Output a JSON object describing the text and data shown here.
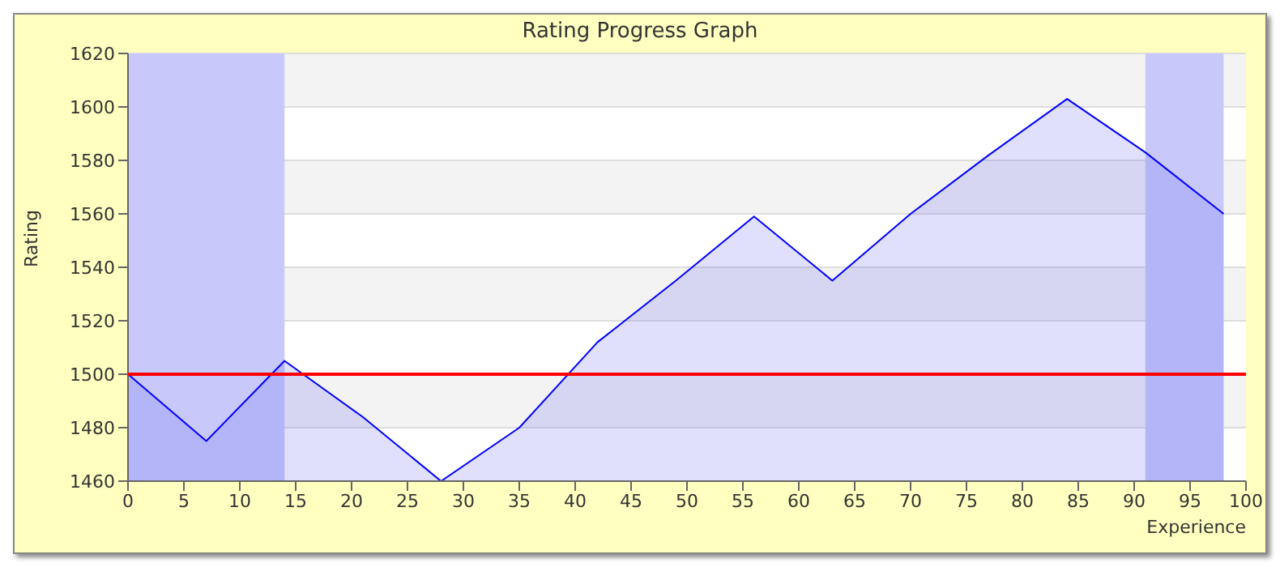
{
  "chart_data": {
    "type": "area",
    "title": "Rating Progress Graph",
    "xlabel": "Experience",
    "ylabel": "Rating",
    "x": [
      0,
      7,
      14,
      21,
      28,
      35,
      42,
      49,
      56,
      63,
      70,
      77,
      84,
      91,
      98
    ],
    "series": [
      {
        "color": "#0000ff",
        "values": [
          1500,
          1475,
          1505,
          1484,
          1460,
          1480,
          1512,
          1535,
          1559,
          1535,
          1560,
          1582,
          1603,
          1583,
          1560
        ]
      }
    ],
    "xlim": [
      0,
      100
    ],
    "xticks": [
      0,
      5,
      10,
      15,
      20,
      25,
      30,
      35,
      40,
      45,
      50,
      55,
      60,
      65,
      70,
      75,
      80,
      85,
      90,
      95,
      100
    ],
    "ylim": [
      1460,
      1620
    ],
    "yticks": [
      1460,
      1480,
      1500,
      1520,
      1540,
      1560,
      1580,
      1600,
      1620
    ],
    "grid": "y",
    "legend": false,
    "marker": "none",
    "ref_lines": [
      {
        "axis": "y",
        "value": 1500,
        "color": "#ff0000"
      }
    ],
    "bands": [
      {
        "axis": "x",
        "from": 0,
        "to": 14,
        "color": "#c8c8fa"
      },
      {
        "axis": "x",
        "from": 91,
        "to": 98,
        "color": "#c8c8fa"
      }
    ]
  }
}
